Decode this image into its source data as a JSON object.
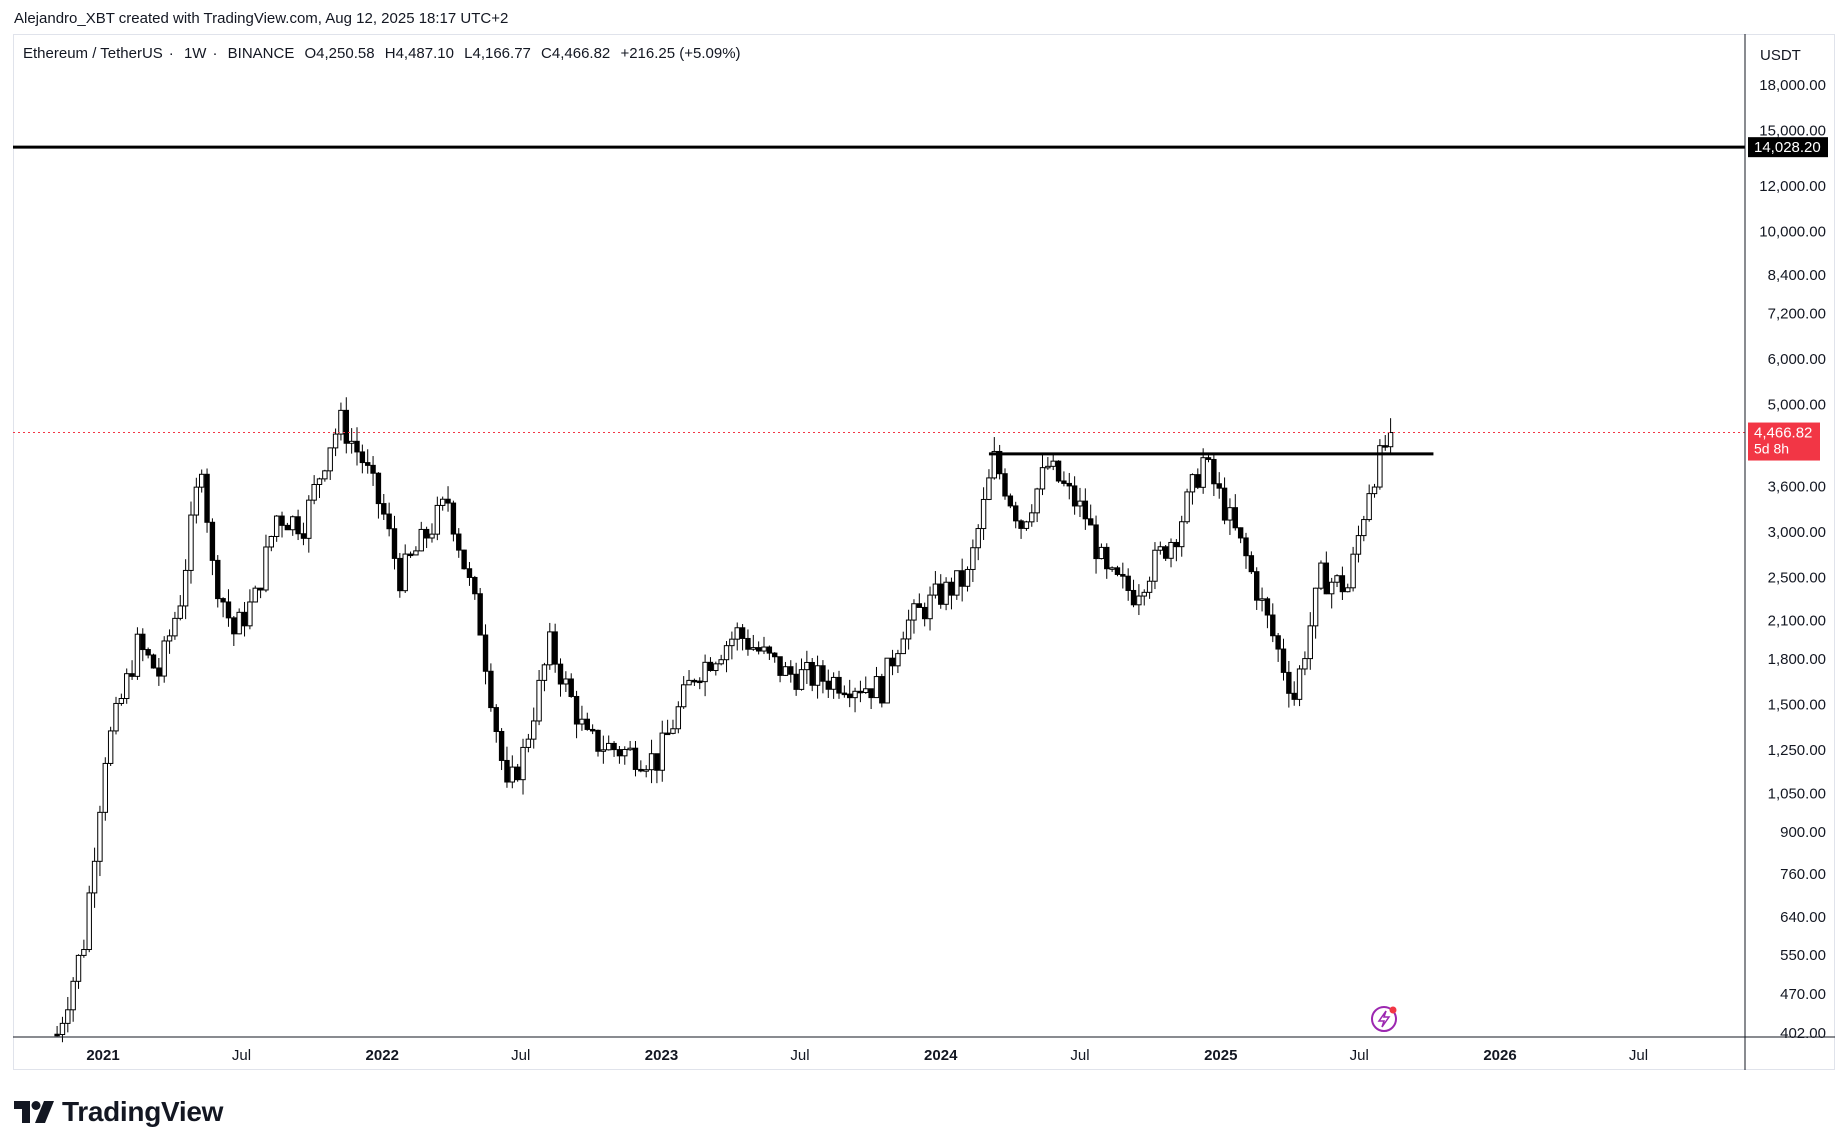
{
  "header": {
    "credit": "Alejandro_XBT created with TradingView.com, Aug 12, 2025 18:17 UTC+2"
  },
  "legend": {
    "symbol": "Ethereum / TetherUS",
    "interval": "1W",
    "exchange": "BINANCE",
    "open_label": "O",
    "open": "4,250.58",
    "high_label": "H",
    "high": "4,487.10",
    "low_label": "L",
    "low": "4,166.77",
    "close_label": "C",
    "close": "4,466.82",
    "change": "+216.25 (+5.09%)"
  },
  "branding": {
    "logo_text": "TradingView"
  },
  "colors": {
    "price_label_bg": "#f23645",
    "line_label_bg": "#000000",
    "candle_up_fill": "#ffffff",
    "candle_down_fill": "#000000",
    "candle_stroke": "#000000",
    "current_price_line": "#f23645",
    "resistance_line": "#000000"
  },
  "chart_data": {
    "type": "candlestick",
    "scale": "log",
    "currency": "USDT",
    "y_ticks": [
      18000,
      15000,
      12000,
      10000,
      8400,
      7200,
      6000,
      5000,
      3600,
      3000,
      2500,
      2100,
      1800,
      1500,
      1250,
      1050,
      900,
      760,
      640,
      550,
      470,
      402
    ],
    "y_tick_labels": [
      "18,000.00",
      "15,000.00",
      "12,000.00",
      "10,000.00",
      "8,400.00",
      "7,200.00",
      "6,000.00",
      "5,000.00",
      "3,600.00",
      "3,000.00",
      "2,500.00",
      "2,100.00",
      "1,800.00",
      "1,500.00",
      "1,250.00",
      "1,050.00",
      "900.00",
      "760.00",
      "640.00",
      "550.00",
      "470.00",
      "402.00"
    ],
    "x_ticks": [
      {
        "label": "2021",
        "date": "2021-01-01",
        "bold": true
      },
      {
        "label": "Jul",
        "date": "2021-07-01",
        "bold": false
      },
      {
        "label": "2022",
        "date": "2022-01-01",
        "bold": true
      },
      {
        "label": "Jul",
        "date": "2022-07-01",
        "bold": false
      },
      {
        "label": "2023",
        "date": "2023-01-01",
        "bold": true
      },
      {
        "label": "Jul",
        "date": "2023-07-01",
        "bold": false
      },
      {
        "label": "2024",
        "date": "2024-01-01",
        "bold": true
      },
      {
        "label": "Jul",
        "date": "2024-07-01",
        "bold": false
      },
      {
        "label": "2025",
        "date": "2025-01-01",
        "bold": true
      },
      {
        "label": "Jul",
        "date": "2025-07-01",
        "bold": false
      },
      {
        "label": "2026",
        "date": "2026-01-01",
        "bold": true
      },
      {
        "label": "Jul",
        "date": "2026-07-01",
        "bold": false
      }
    ],
    "horizontal_lines": [
      {
        "name": "target",
        "price": 14028.2,
        "label": "14,028.20"
      },
      {
        "name": "resistance",
        "price": 4100,
        "from": "2024-03-04",
        "to": "2025-10-06"
      }
    ],
    "current_price": {
      "value": 4466.82,
      "label": "4,466.82",
      "countdown": "5d 8h"
    },
    "weekly_close_series": [
      {
        "date": "2020-11-02",
        "close": 400
      },
      {
        "date": "2020-12-07",
        "close": 580
      },
      {
        "date": "2021-01-04",
        "close": 1230
      },
      {
        "date": "2021-02-15",
        "close": 1900
      },
      {
        "date": "2021-03-15",
        "close": 1700
      },
      {
        "date": "2021-04-12",
        "close": 2300
      },
      {
        "date": "2021-05-10",
        "close": 4000
      },
      {
        "date": "2021-05-24",
        "close": 2600
      },
      {
        "date": "2021-06-21",
        "close": 2000
      },
      {
        "date": "2021-07-19",
        "close": 2300
      },
      {
        "date": "2021-08-16",
        "close": 3200
      },
      {
        "date": "2021-09-20",
        "close": 3100
      },
      {
        "date": "2021-10-25",
        "close": 4300
      },
      {
        "date": "2021-11-08",
        "close": 4650
      },
      {
        "date": "2021-12-06",
        "close": 4000
      },
      {
        "date": "2022-01-03",
        "close": 3200
      },
      {
        "date": "2022-01-24",
        "close": 2500
      },
      {
        "date": "2022-03-28",
        "close": 3400
      },
      {
        "date": "2022-05-09",
        "close": 2050
      },
      {
        "date": "2022-06-13",
        "close": 1050
      },
      {
        "date": "2022-07-04",
        "close": 1230
      },
      {
        "date": "2022-08-08",
        "close": 1900
      },
      {
        "date": "2022-09-26",
        "close": 1300
      },
      {
        "date": "2022-11-07",
        "close": 1250
      },
      {
        "date": "2022-12-26",
        "close": 1200
      },
      {
        "date": "2023-02-13",
        "close": 1700
      },
      {
        "date": "2023-04-10",
        "close": 2000
      },
      {
        "date": "2023-06-12",
        "close": 1700
      },
      {
        "date": "2023-08-21",
        "close": 1650
      },
      {
        "date": "2023-10-16",
        "close": 1600
      },
      {
        "date": "2023-11-13",
        "close": 2050
      },
      {
        "date": "2023-12-25",
        "close": 2300
      },
      {
        "date": "2024-02-05",
        "close": 2500
      },
      {
        "date": "2024-03-11",
        "close": 4000
      },
      {
        "date": "2024-04-15",
        "close": 3100
      },
      {
        "date": "2024-05-20",
        "close": 3900
      },
      {
        "date": "2024-07-08",
        "close": 3200
      },
      {
        "date": "2024-08-05",
        "close": 2500
      },
      {
        "date": "2024-09-09",
        "close": 2350
      },
      {
        "date": "2024-11-04",
        "close": 3000
      },
      {
        "date": "2024-12-09",
        "close": 4000
      },
      {
        "date": "2025-01-06",
        "close": 3300
      },
      {
        "date": "2025-02-03",
        "close": 2700
      },
      {
        "date": "2025-03-03",
        "close": 2100
      },
      {
        "date": "2025-04-07",
        "close": 1550
      },
      {
        "date": "2025-05-12",
        "close": 2500
      },
      {
        "date": "2025-06-16",
        "close": 2400
      },
      {
        "date": "2025-07-14",
        "close": 3600
      },
      {
        "date": "2025-08-11",
        "close": 4466.82
      }
    ]
  }
}
